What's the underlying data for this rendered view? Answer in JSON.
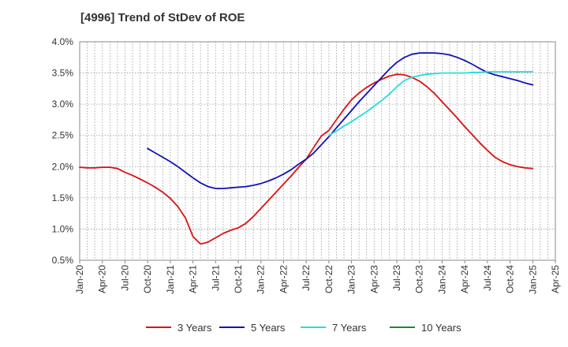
{
  "chart_data": {
    "type": "line",
    "title": "[4996]  Trend of StDev of ROE",
    "xlabel": "",
    "ylabel": "",
    "ylim": [
      0.005,
      0.04
    ],
    "y_ticks": [
      0.005,
      0.01,
      0.015,
      0.02,
      0.025,
      0.03,
      0.035,
      0.04
    ],
    "y_tick_labels": [
      "0.5%",
      "1.0%",
      "1.5%",
      "2.0%",
      "2.5%",
      "3.0%",
      "3.5%",
      "4.0%"
    ],
    "x_range": [
      "Jan-20",
      "Apr-25"
    ],
    "x_tick_labels": [
      "Jan-20",
      "Apr-20",
      "Jul-20",
      "Oct-20",
      "Jan-21",
      "Apr-21",
      "Jul-21",
      "Oct-21",
      "Jan-22",
      "Apr-22",
      "Jul-22",
      "Oct-22",
      "Jan-23",
      "Apr-23",
      "Jul-23",
      "Oct-23",
      "Jan-24",
      "Apr-24",
      "Jul-24",
      "Oct-24",
      "Jan-25",
      "Apr-25"
    ],
    "grid": true,
    "legend_position": "bottom",
    "series": [
      {
        "name": "3 Years",
        "color": "#dd1111",
        "points": [
          [
            "Jan-20",
            0.0199
          ],
          [
            "Feb-20",
            0.0198
          ],
          [
            "Mar-20",
            0.0198
          ],
          [
            "Apr-20",
            0.0199
          ],
          [
            "May-20",
            0.0199
          ],
          [
            "Jun-20",
            0.0197
          ],
          [
            "Jul-20",
            0.0191
          ],
          [
            "Aug-20",
            0.0186
          ],
          [
            "Sep-20",
            0.018
          ],
          [
            "Oct-20",
            0.0174
          ],
          [
            "Nov-20",
            0.0167
          ],
          [
            "Dec-20",
            0.0159
          ],
          [
            "Jan-21",
            0.0149
          ],
          [
            "Feb-21",
            0.0136
          ],
          [
            "Mar-21",
            0.0118
          ],
          [
            "Apr-21",
            0.0088
          ],
          [
            "May-21",
            0.0076
          ],
          [
            "Jun-21",
            0.0079
          ],
          [
            "Jul-21",
            0.0086
          ],
          [
            "Aug-21",
            0.0093
          ],
          [
            "Sep-21",
            0.0098
          ],
          [
            "Oct-21",
            0.0102
          ],
          [
            "Nov-21",
            0.0109
          ],
          [
            "Dec-21",
            0.012
          ],
          [
            "Jan-22",
            0.0133
          ],
          [
            "Feb-22",
            0.0146
          ],
          [
            "Mar-22",
            0.0159
          ],
          [
            "Apr-22",
            0.0172
          ],
          [
            "May-22",
            0.0185
          ],
          [
            "Jun-22",
            0.0199
          ],
          [
            "Jul-22",
            0.0212
          ],
          [
            "Aug-22",
            0.0231
          ],
          [
            "Sep-22",
            0.0249
          ],
          [
            "Oct-22",
            0.0258
          ],
          [
            "Nov-22",
            0.0275
          ],
          [
            "Dec-22",
            0.0292
          ],
          [
            "Jan-23",
            0.0307
          ],
          [
            "Feb-23",
            0.0318
          ],
          [
            "Mar-23",
            0.0327
          ],
          [
            "Apr-23",
            0.0334
          ],
          [
            "May-23",
            0.034
          ],
          [
            "Jun-23",
            0.0345
          ],
          [
            "Jul-23",
            0.0348
          ],
          [
            "Aug-23",
            0.0347
          ],
          [
            "Sep-23",
            0.0343
          ],
          [
            "Oct-23",
            0.0337
          ],
          [
            "Nov-23",
            0.0328
          ],
          [
            "Dec-23",
            0.0317
          ],
          [
            "Jan-24",
            0.0304
          ],
          [
            "Feb-24",
            0.0291
          ],
          [
            "Mar-24",
            0.0278
          ],
          [
            "Apr-24",
            0.0264
          ],
          [
            "May-24",
            0.0251
          ],
          [
            "Jun-24",
            0.0238
          ],
          [
            "Jul-24",
            0.0226
          ],
          [
            "Aug-24",
            0.0215
          ],
          [
            "Sep-24",
            0.0208
          ],
          [
            "Oct-24",
            0.0203
          ],
          [
            "Nov-24",
            0.02
          ],
          [
            "Dec-24",
            0.0198
          ],
          [
            "Jan-25",
            0.0197
          ]
        ]
      },
      {
        "name": "5 Years",
        "color": "#1111bb",
        "points": [
          [
            "Oct-20",
            0.0229
          ],
          [
            "Nov-20",
            0.0222
          ],
          [
            "Dec-20",
            0.0215
          ],
          [
            "Jan-21",
            0.0208
          ],
          [
            "Feb-21",
            0.02
          ],
          [
            "Mar-21",
            0.0191
          ],
          [
            "Apr-21",
            0.0182
          ],
          [
            "May-21",
            0.0174
          ],
          [
            "Jun-21",
            0.0168
          ],
          [
            "Jul-21",
            0.0165
          ],
          [
            "Aug-21",
            0.0165
          ],
          [
            "Sep-21",
            0.0166
          ],
          [
            "Oct-21",
            0.0167
          ],
          [
            "Nov-21",
            0.0168
          ],
          [
            "Dec-21",
            0.017
          ],
          [
            "Jan-22",
            0.0173
          ],
          [
            "Feb-22",
            0.0177
          ],
          [
            "Mar-22",
            0.0182
          ],
          [
            "Apr-22",
            0.0188
          ],
          [
            "May-22",
            0.0195
          ],
          [
            "Jun-22",
            0.0204
          ],
          [
            "Jul-22",
            0.0212
          ],
          [
            "Aug-22",
            0.0222
          ],
          [
            "Sep-22",
            0.0235
          ],
          [
            "Oct-22",
            0.0248
          ],
          [
            "Nov-22",
            0.0262
          ],
          [
            "Dec-22",
            0.0276
          ],
          [
            "Jan-23",
            0.029
          ],
          [
            "Feb-23",
            0.0304
          ],
          [
            "Mar-23",
            0.0317
          ],
          [
            "Apr-23",
            0.033
          ],
          [
            "May-23",
            0.0343
          ],
          [
            "Jun-23",
            0.0356
          ],
          [
            "Jul-23",
            0.0367
          ],
          [
            "Aug-23",
            0.0375
          ],
          [
            "Sep-23",
            0.038
          ],
          [
            "Oct-23",
            0.0382
          ],
          [
            "Nov-23",
            0.0382
          ],
          [
            "Dec-23",
            0.0382
          ],
          [
            "Jan-24",
            0.0381
          ],
          [
            "Feb-24",
            0.0379
          ],
          [
            "Mar-24",
            0.0375
          ],
          [
            "Apr-24",
            0.037
          ],
          [
            "May-24",
            0.0364
          ],
          [
            "Jun-24",
            0.0357
          ],
          [
            "Jul-24",
            0.0351
          ],
          [
            "Aug-24",
            0.0347
          ],
          [
            "Sep-24",
            0.0344
          ],
          [
            "Oct-24",
            0.0341
          ],
          [
            "Nov-24",
            0.0338
          ],
          [
            "Dec-24",
            0.0334
          ],
          [
            "Jan-25",
            0.0331
          ]
        ]
      },
      {
        "name": "7 Years",
        "color": "#22dddd",
        "points": [
          [
            "Oct-22",
            0.025
          ],
          [
            "Nov-22",
            0.0257
          ],
          [
            "Dec-22",
            0.0265
          ],
          [
            "Jan-23",
            0.0272
          ],
          [
            "Feb-23",
            0.028
          ],
          [
            "Mar-23",
            0.0288
          ],
          [
            "Apr-23",
            0.0297
          ],
          [
            "May-23",
            0.0306
          ],
          [
            "Jun-23",
            0.0316
          ],
          [
            "Jul-23",
            0.0328
          ],
          [
            "Aug-23",
            0.0338
          ],
          [
            "Sep-23",
            0.0343
          ],
          [
            "Oct-23",
            0.0346
          ],
          [
            "Nov-23",
            0.0348
          ],
          [
            "Dec-23",
            0.0349
          ],
          [
            "Jan-24",
            0.035
          ],
          [
            "Feb-24",
            0.035
          ],
          [
            "Mar-24",
            0.035
          ],
          [
            "Apr-24",
            0.035
          ],
          [
            "May-24",
            0.0351
          ],
          [
            "Jun-24",
            0.0351
          ],
          [
            "Jul-24",
            0.0352
          ],
          [
            "Aug-24",
            0.0352
          ],
          [
            "Sep-24",
            0.0352
          ],
          [
            "Oct-24",
            0.0352
          ],
          [
            "Nov-24",
            0.0352
          ],
          [
            "Dec-24",
            0.0352
          ],
          [
            "Jan-25",
            0.0352
          ]
        ]
      },
      {
        "name": "10 Years",
        "color": "#228822",
        "points": []
      }
    ]
  }
}
